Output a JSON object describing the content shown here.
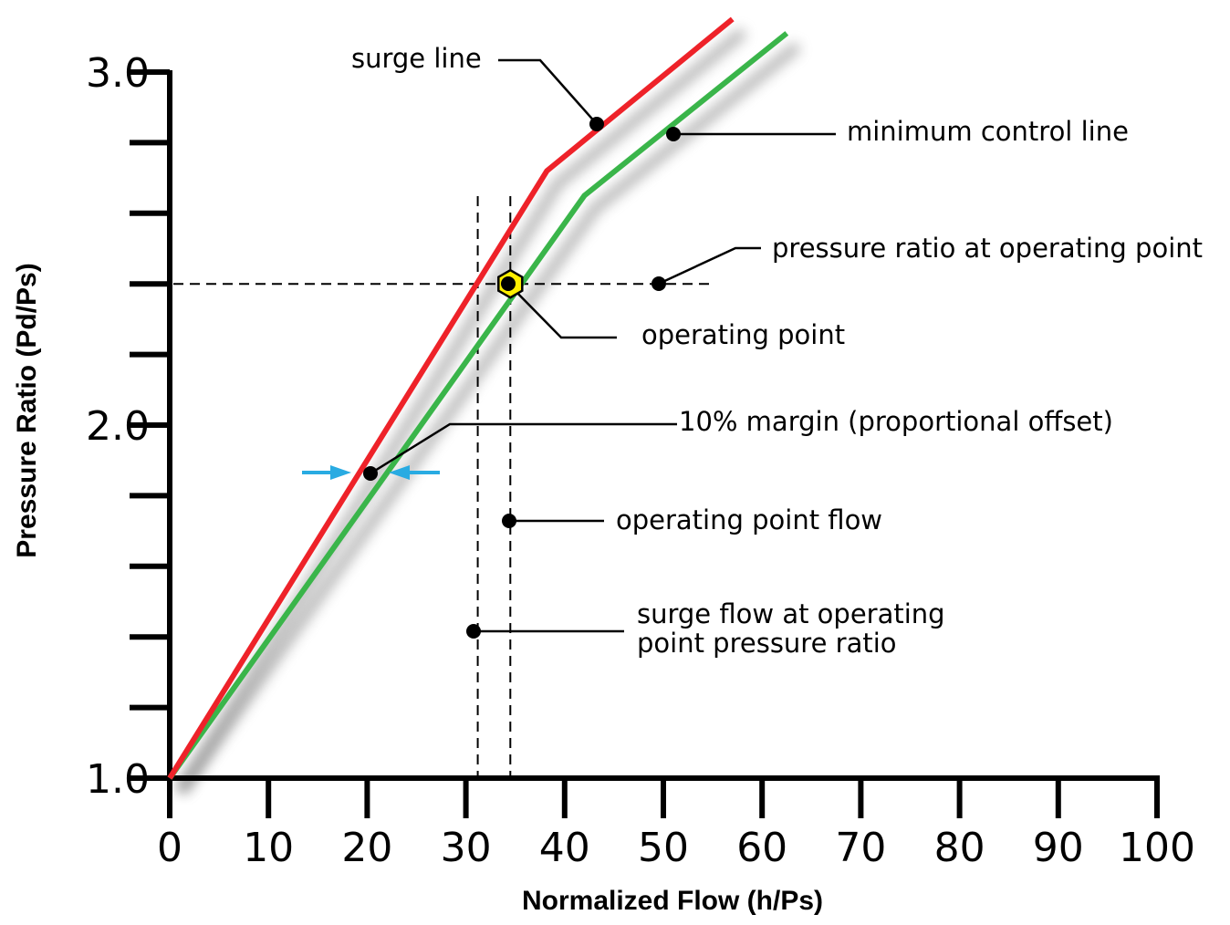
{
  "chart_data": {
    "type": "line",
    "xlabel": "Normalized Flow (h/Ps)",
    "ylabel": "Pressure Ratio (Pd/Ps)",
    "xlim": [
      0,
      100
    ],
    "ylim": [
      1.0,
      3.0
    ],
    "x_ticks": [
      0,
      10,
      20,
      30,
      40,
      50,
      60,
      70,
      80,
      90,
      100
    ],
    "y_tick_labels": [
      "1.0",
      "2.0",
      "3.0"
    ],
    "y_minor_ticks": [
      1.2,
      1.4,
      1.6,
      1.8,
      2.2,
      2.4,
      2.6,
      2.8
    ],
    "grid": false,
    "series": [
      {
        "name": "surge line",
        "color": "#ee2229",
        "points": [
          [
            0,
            1.0
          ],
          [
            38.2,
            2.72
          ],
          [
            57,
            3.15
          ]
        ]
      },
      {
        "name": "minimum control line",
        "color": "#3ab54a",
        "points": [
          [
            0,
            1.0
          ],
          [
            42,
            2.65
          ],
          [
            62.5,
            3.11
          ]
        ]
      }
    ],
    "operating_point": {
      "x": 34.5,
      "y": 2.4,
      "color": "#ffef00"
    },
    "reference_lines": {
      "pressure_ratio_at_operating_point": 2.4,
      "operating_point_flow": 34.5,
      "surge_flow_at_operating_point_pressure_ratio": 31.2
    },
    "margin_arrows_color": "#29abe2",
    "annotations": {
      "surge_line": "surge line",
      "minimum_control_line": "minimum control line",
      "pressure_ratio_at_operating_point": "pressure ratio at operating point",
      "operating_point": "operating point",
      "margin": "10% margin (proportional offset)",
      "operating_point_flow": "operating point flow",
      "surge_flow_line1": "surge flow at operating",
      "surge_flow_line2": "point pressure ratio"
    }
  }
}
